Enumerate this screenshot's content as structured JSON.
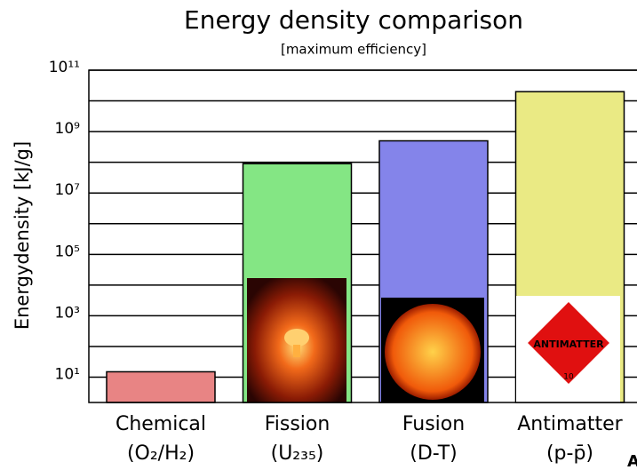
{
  "chart_data": {
    "type": "bar",
    "title": "Energy density comparison",
    "subtitle": "[maximum efficiency]",
    "y_label": "Energydensity [kJ/g]",
    "categories": [
      "Chemical",
      "Fission",
      "Fusion",
      "Antimatter"
    ],
    "category_sublabels": [
      "(O₂/H₂)",
      "(U₂₃₅)",
      "(D-T)",
      "(p-p̄)"
    ],
    "values": [
      15,
      90000000,
      500000000,
      20000000000
    ],
    "colors": [
      "#e88484",
      "#84e684",
      "#8484ea",
      "#eaea84"
    ],
    "log_scale": true,
    "grid": true,
    "ylim": [
      1.5,
      100000000000
    ],
    "yticks": [
      {
        "value": 10,
        "label": "10¹"
      },
      {
        "value": 1000,
        "label": "10³"
      },
      {
        "value": 100000,
        "label": "10⁵"
      },
      {
        "value": 10000000,
        "label": "10⁷"
      },
      {
        "value": 1000000000,
        "label": "10⁹"
      },
      {
        "value": 100000000000,
        "label": "10¹¹"
      }
    ],
    "yticks_minor": [
      100,
      10000,
      1000000,
      100000000,
      10000000000
    ],
    "corner_text": "Al"
  }
}
